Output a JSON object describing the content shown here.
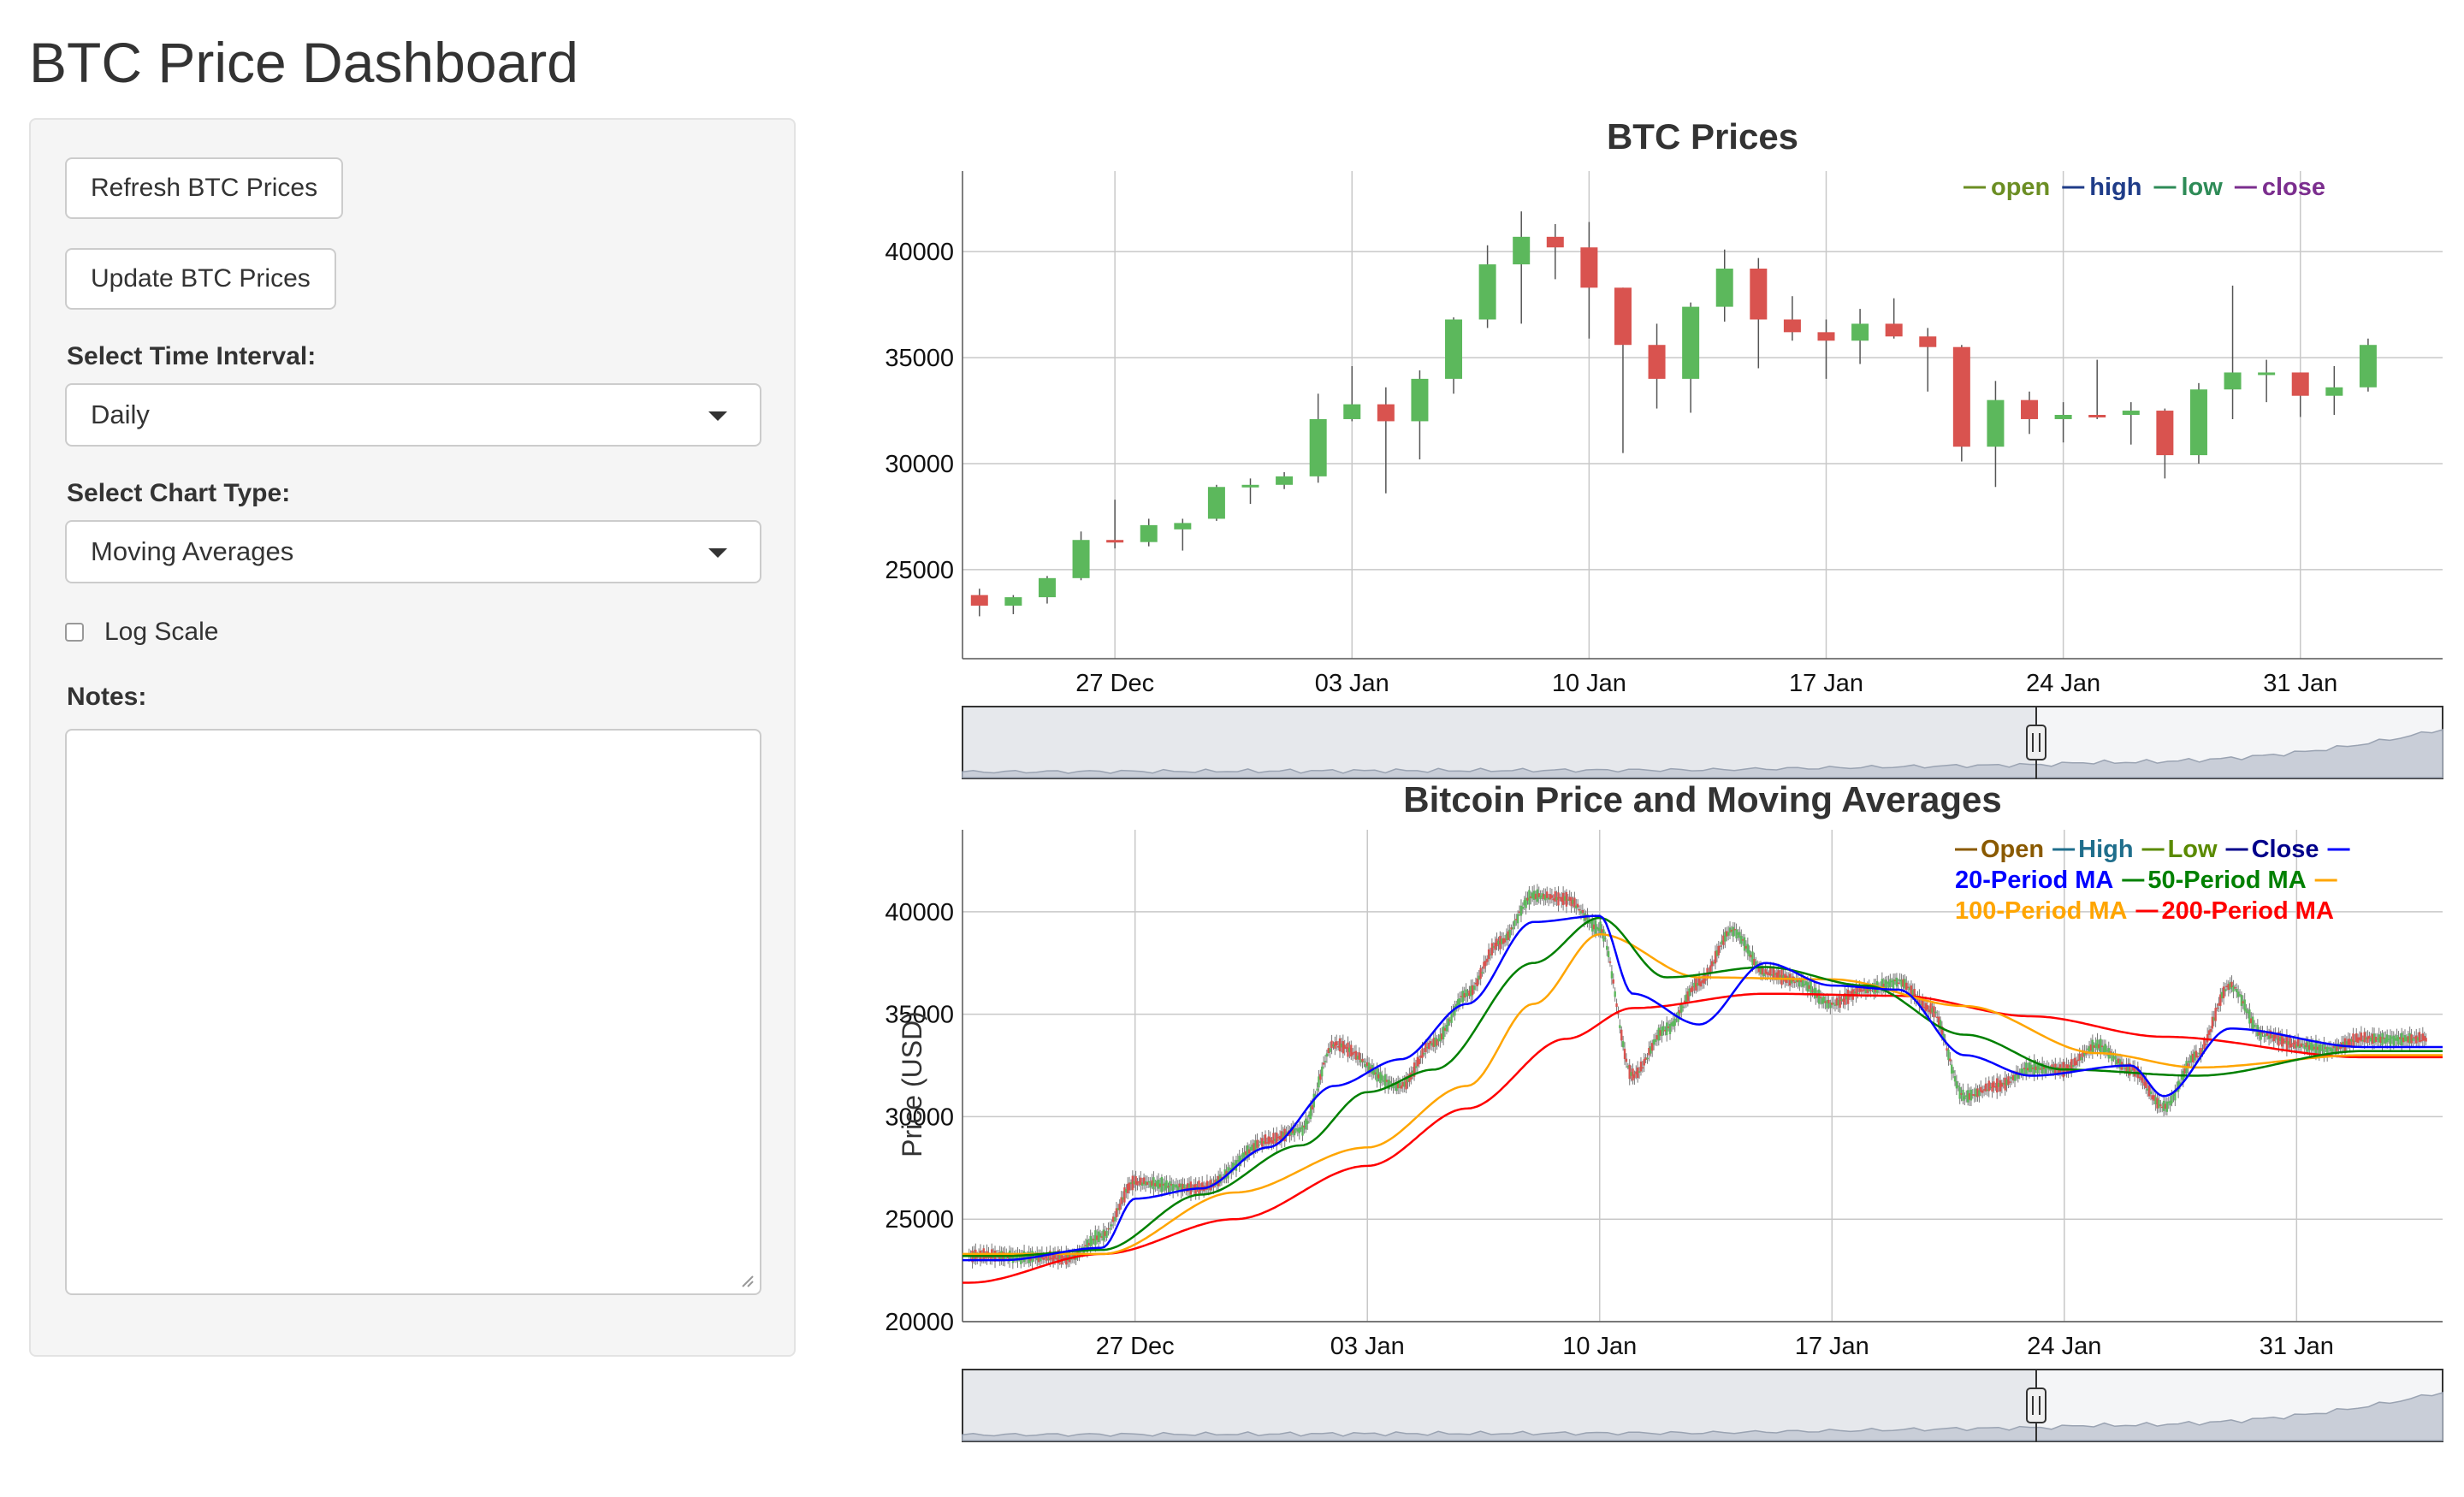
{
  "header": {
    "title": "BTC Price Dashboard"
  },
  "sidebar": {
    "refresh_label": "Refresh BTC Prices",
    "update_label": "Update BTC Prices",
    "interval_label": "Select Time Interval:",
    "interval_value": "Daily",
    "chart_type_label": "Select Chart Type:",
    "chart_type_value": "Moving Averages",
    "log_scale_label": "Log Scale",
    "log_scale_checked": false,
    "notes_label": "Notes:",
    "notes_value": ""
  },
  "chart_data": [
    {
      "type": "candlestick",
      "title": "BTC Prices",
      "xlabel": "",
      "ylabel": "",
      "x_ticks": [
        "27 Dec",
        "03 Jan",
        "10 Jan",
        "17 Jan",
        "24 Jan",
        "31 Jan"
      ],
      "y_ticks": [
        25000,
        30000,
        35000,
        40000
      ],
      "ylim": [
        20800,
        43800
      ],
      "legend_position": "top-right",
      "legend": [
        {
          "name": "open",
          "color": "#6b8e23"
        },
        {
          "name": "high",
          "color": "#1f3c88"
        },
        {
          "name": "low",
          "color": "#2e8b57"
        },
        {
          "name": "close",
          "color": "#7b2e8e"
        }
      ],
      "colors": {
        "up": "#5cb85c",
        "down": "#d9534f"
      },
      "start_date": "2020-12-23",
      "candles": [
        {
          "date": "2020-12-23",
          "open": 23800,
          "high": 24100,
          "low": 22800,
          "close": 23300
        },
        {
          "date": "2020-12-24",
          "open": 23300,
          "high": 23800,
          "low": 22900,
          "close": 23700
        },
        {
          "date": "2020-12-25",
          "open": 23700,
          "high": 24700,
          "low": 23400,
          "close": 24600
        },
        {
          "date": "2020-12-26",
          "open": 24600,
          "high": 26800,
          "low": 24500,
          "close": 26400
        },
        {
          "date": "2020-12-27",
          "open": 26400,
          "high": 28300,
          "low": 26000,
          "close": 26300
        },
        {
          "date": "2020-12-28",
          "open": 26300,
          "high": 27400,
          "low": 26100,
          "close": 27100
        },
        {
          "date": "2020-12-29",
          "open": 26900,
          "high": 27400,
          "low": 25900,
          "close": 27200
        },
        {
          "date": "2020-12-30",
          "open": 27400,
          "high": 29000,
          "low": 27300,
          "close": 28900
        },
        {
          "date": "2020-12-31",
          "open": 28900,
          "high": 29300,
          "low": 28100,
          "close": 29000
        },
        {
          "date": "2021-01-01",
          "open": 29000,
          "high": 29600,
          "low": 28800,
          "close": 29400
        },
        {
          "date": "2021-01-02",
          "open": 29400,
          "high": 33300,
          "low": 29100,
          "close": 32100
        },
        {
          "date": "2021-01-03",
          "open": 32100,
          "high": 34600,
          "low": 32000,
          "close": 32800
        },
        {
          "date": "2021-01-04",
          "open": 32800,
          "high": 33600,
          "low": 28600,
          "close": 32000
        },
        {
          "date": "2021-01-05",
          "open": 32000,
          "high": 34400,
          "low": 30200,
          "close": 34000
        },
        {
          "date": "2021-01-06",
          "open": 34000,
          "high": 36900,
          "low": 33300,
          "close": 36800
        },
        {
          "date": "2021-01-07",
          "open": 36800,
          "high": 40300,
          "low": 36400,
          "close": 39400
        },
        {
          "date": "2021-01-08",
          "open": 39400,
          "high": 41900,
          "low": 36600,
          "close": 40700
        },
        {
          "date": "2021-01-09",
          "open": 40700,
          "high": 41300,
          "low": 38700,
          "close": 40200
        },
        {
          "date": "2021-01-10",
          "open": 40200,
          "high": 41400,
          "low": 35900,
          "close": 38300
        },
        {
          "date": "2021-01-11",
          "open": 38300,
          "high": 38300,
          "low": 30500,
          "close": 35600
        },
        {
          "date": "2021-01-12",
          "open": 35600,
          "high": 36600,
          "low": 32600,
          "close": 34000
        },
        {
          "date": "2021-01-13",
          "open": 34000,
          "high": 37600,
          "low": 32400,
          "close": 37400
        },
        {
          "date": "2021-01-14",
          "open": 37400,
          "high": 40100,
          "low": 36700,
          "close": 39200
        },
        {
          "date": "2021-01-15",
          "open": 39200,
          "high": 39700,
          "low": 34500,
          "close": 36800
        },
        {
          "date": "2021-01-16",
          "open": 36800,
          "high": 37900,
          "low": 35800,
          "close": 36200
        },
        {
          "date": "2021-01-17",
          "open": 36200,
          "high": 36800,
          "low": 34000,
          "close": 35800
        },
        {
          "date": "2021-01-18",
          "open": 35800,
          "high": 37300,
          "low": 34700,
          "close": 36600
        },
        {
          "date": "2021-01-19",
          "open": 36600,
          "high": 37800,
          "low": 35900,
          "close": 36000
        },
        {
          "date": "2021-01-20",
          "open": 36000,
          "high": 36400,
          "low": 33400,
          "close": 35500
        },
        {
          "date": "2021-01-21",
          "open": 35500,
          "high": 35600,
          "low": 30100,
          "close": 30800
        },
        {
          "date": "2021-01-22",
          "open": 30800,
          "high": 33900,
          "low": 28900,
          "close": 33000
        },
        {
          "date": "2021-01-23",
          "open": 33000,
          "high": 33400,
          "low": 31400,
          "close": 32100
        },
        {
          "date": "2021-01-24",
          "open": 32100,
          "high": 32900,
          "low": 31000,
          "close": 32300
        },
        {
          "date": "2021-01-25",
          "open": 32300,
          "high": 34900,
          "low": 32100,
          "close": 32200
        },
        {
          "date": "2021-01-26",
          "open": 32300,
          "high": 32900,
          "low": 30900,
          "close": 32500
        },
        {
          "date": "2021-01-27",
          "open": 32500,
          "high": 32600,
          "low": 29300,
          "close": 30400
        },
        {
          "date": "2021-01-28",
          "open": 30400,
          "high": 33800,
          "low": 30000,
          "close": 33500
        },
        {
          "date": "2021-01-29",
          "open": 33500,
          "high": 38400,
          "low": 32100,
          "close": 34300
        },
        {
          "date": "2021-01-30",
          "open": 34300,
          "high": 34900,
          "low": 32900,
          "close": 34300
        },
        {
          "date": "2021-01-31",
          "open": 34300,
          "high": 34300,
          "low": 32200,
          "close": 33200
        },
        {
          "date": "2021-02-01",
          "open": 33200,
          "high": 34600,
          "low": 32300,
          "close": 33600
        },
        {
          "date": "2021-02-02",
          "open": 33600,
          "high": 35900,
          "low": 33400,
          "close": 35600
        }
      ]
    },
    {
      "type": "line",
      "title": "Bitcoin Price and Moving Averages",
      "xlabel": "",
      "ylabel": "Price (USD)",
      "x_ticks": [
        "27 Dec",
        "03 Jan",
        "10 Jan",
        "17 Jan",
        "24 Jan",
        "31 Jan"
      ],
      "y_ticks": [
        20000,
        25000,
        30000,
        35000,
        40000
      ],
      "ylim": [
        20000,
        44000
      ],
      "legend_position": "top-right",
      "legend": [
        {
          "name": "Open",
          "color": "#8a5a00"
        },
        {
          "name": "High",
          "color": "#1f6e8c"
        },
        {
          "name": "Low",
          "color": "#5a8a00"
        },
        {
          "name": "Close",
          "color": "#00008b"
        },
        {
          "name": "20-Period MA",
          "color": "#0000ff"
        },
        {
          "name": "50-Period MA",
          "color": "#008000"
        },
        {
          "name": "100-Period MA",
          "color": "#ffa500"
        },
        {
          "name": "200-Period MA",
          "color": "#ff0000"
        }
      ],
      "price_anchors": [
        {
          "date": "2020-12-23",
          "value": 23200
        },
        {
          "date": "2020-12-25",
          "value": 23100
        },
        {
          "date": "2020-12-26",
          "value": 24200
        },
        {
          "date": "2020-12-27",
          "value": 26800
        },
        {
          "date": "2020-12-29",
          "value": 26500
        },
        {
          "date": "2020-12-31",
          "value": 28800
        },
        {
          "date": "2021-01-01",
          "value": 29400
        },
        {
          "date": "2021-01-02",
          "value": 33500
        },
        {
          "date": "2021-01-04",
          "value": 31500
        },
        {
          "date": "2021-01-05",
          "value": 33600
        },
        {
          "date": "2021-01-06",
          "value": 36000
        },
        {
          "date": "2021-01-07",
          "value": 38500
        },
        {
          "date": "2021-01-08",
          "value": 40800
        },
        {
          "date": "2021-01-09",
          "value": 40600
        },
        {
          "date": "2021-01-10",
          "value": 39200
        },
        {
          "date": "2021-01-11",
          "value": 32000
        },
        {
          "date": "2021-01-12",
          "value": 34300
        },
        {
          "date": "2021-01-13",
          "value": 36500
        },
        {
          "date": "2021-01-14",
          "value": 39100
        },
        {
          "date": "2021-01-15",
          "value": 37000
        },
        {
          "date": "2021-01-16",
          "value": 36600
        },
        {
          "date": "2021-01-17",
          "value": 35500
        },
        {
          "date": "2021-01-18",
          "value": 36200
        },
        {
          "date": "2021-01-19",
          "value": 36600
        },
        {
          "date": "2021-01-20",
          "value": 35200
        },
        {
          "date": "2021-01-21",
          "value": 31000
        },
        {
          "date": "2021-01-22",
          "value": 31500
        },
        {
          "date": "2021-01-23",
          "value": 32400
        },
        {
          "date": "2021-01-24",
          "value": 32300
        },
        {
          "date": "2021-01-25",
          "value": 33500
        },
        {
          "date": "2021-01-26",
          "value": 32300
        },
        {
          "date": "2021-01-27",
          "value": 30500
        },
        {
          "date": "2021-01-28",
          "value": 33000
        },
        {
          "date": "2021-01-29",
          "value": 36400
        },
        {
          "date": "2021-01-30",
          "value": 34000
        },
        {
          "date": "2021-01-31",
          "value": 33500
        },
        {
          "date": "2021-02-01",
          "value": 33300
        },
        {
          "date": "2021-02-02",
          "value": 33800
        }
      ],
      "ma20_anchors": [
        {
          "date": "2020-12-23",
          "value": 23000
        },
        {
          "date": "2020-12-26",
          "value": 23600
        },
        {
          "date": "2020-12-27",
          "value": 26000
        },
        {
          "date": "2020-12-29",
          "value": 26500
        },
        {
          "date": "2020-12-31",
          "value": 28500
        },
        {
          "date": "2021-01-02",
          "value": 31500
        },
        {
          "date": "2021-01-04",
          "value": 32800
        },
        {
          "date": "2021-01-06",
          "value": 35500
        },
        {
          "date": "2021-01-08",
          "value": 39500
        },
        {
          "date": "2021-01-10",
          "value": 39800
        },
        {
          "date": "2021-01-11",
          "value": 36000
        },
        {
          "date": "2021-01-13",
          "value": 34500
        },
        {
          "date": "2021-01-15",
          "value": 37500
        },
        {
          "date": "2021-01-17",
          "value": 36400
        },
        {
          "date": "2021-01-19",
          "value": 36200
        },
        {
          "date": "2021-01-21",
          "value": 33000
        },
        {
          "date": "2021-01-23",
          "value": 32000
        },
        {
          "date": "2021-01-26",
          "value": 32500
        },
        {
          "date": "2021-01-27",
          "value": 31000
        },
        {
          "date": "2021-01-29",
          "value": 34300
        },
        {
          "date": "2021-02-02",
          "value": 33400
        }
      ],
      "ma50_anchors": [
        {
          "date": "2020-12-23",
          "value": 23200
        },
        {
          "date": "2020-12-26",
          "value": 23500
        },
        {
          "date": "2020-12-29",
          "value": 26200
        },
        {
          "date": "2021-01-01",
          "value": 28600
        },
        {
          "date": "2021-01-03",
          "value": 31200
        },
        {
          "date": "2021-01-05",
          "value": 32300
        },
        {
          "date": "2021-01-08",
          "value": 37500
        },
        {
          "date": "2021-01-10",
          "value": 39700
        },
        {
          "date": "2021-01-12",
          "value": 36800
        },
        {
          "date": "2021-01-15",
          "value": 37300
        },
        {
          "date": "2021-01-18",
          "value": 36400
        },
        {
          "date": "2021-01-21",
          "value": 34000
        },
        {
          "date": "2021-01-24",
          "value": 32300
        },
        {
          "date": "2021-01-28",
          "value": 32000
        },
        {
          "date": "2021-02-02",
          "value": 33200
        }
      ],
      "ma100_anchors": [
        {
          "date": "2020-12-23",
          "value": 23300
        },
        {
          "date": "2020-12-26",
          "value": 23300
        },
        {
          "date": "2020-12-30",
          "value": 26300
        },
        {
          "date": "2021-01-03",
          "value": 28500
        },
        {
          "date": "2021-01-06",
          "value": 31500
        },
        {
          "date": "2021-01-08",
          "value": 35500
        },
        {
          "date": "2021-01-10",
          "value": 38900
        },
        {
          "date": "2021-01-13",
          "value": 36800
        },
        {
          "date": "2021-01-17",
          "value": 36700
        },
        {
          "date": "2021-01-21",
          "value": 35400
        },
        {
          "date": "2021-01-25",
          "value": 33100
        },
        {
          "date": "2021-01-28",
          "value": 32400
        },
        {
          "date": "2021-02-02",
          "value": 33000
        }
      ],
      "ma200_anchors": [
        {
          "date": "2020-12-22",
          "value": 21900
        },
        {
          "date": "2020-12-26",
          "value": 23300
        },
        {
          "date": "2020-12-30",
          "value": 25000
        },
        {
          "date": "2021-01-03",
          "value": 27600
        },
        {
          "date": "2021-01-06",
          "value": 30400
        },
        {
          "date": "2021-01-09",
          "value": 33800
        },
        {
          "date": "2021-01-11",
          "value": 35300
        },
        {
          "date": "2021-01-15",
          "value": 36000
        },
        {
          "date": "2021-01-19",
          "value": 35900
        },
        {
          "date": "2021-01-23",
          "value": 34900
        },
        {
          "date": "2021-01-27",
          "value": 33900
        },
        {
          "date": "2021-02-02",
          "value": 32900
        }
      ]
    }
  ]
}
